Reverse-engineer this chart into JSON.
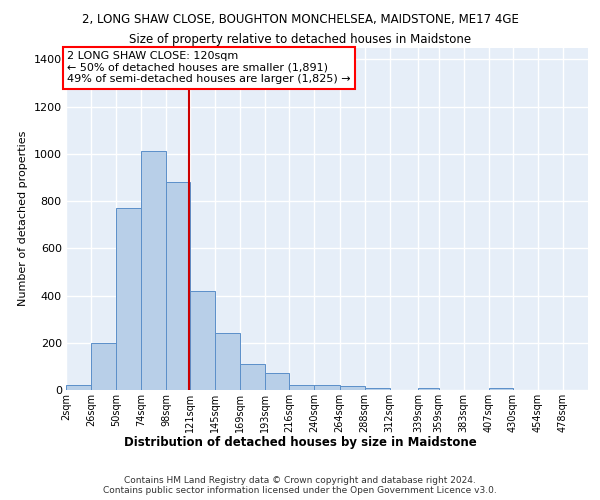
{
  "title": "2, LONG SHAW CLOSE, BOUGHTON MONCHELSEA, MAIDSTONE, ME17 4GE",
  "subtitle": "Size of property relative to detached houses in Maidstone",
  "xlabel": "Distribution of detached houses by size in Maidstone",
  "ylabel": "Number of detached properties",
  "footer_line1": "Contains HM Land Registry data © Crown copyright and database right 2024.",
  "footer_line2": "Contains public sector information licensed under the Open Government Licence v3.0.",
  "bar_color": "#b8cfe8",
  "bar_edge_color": "#5b8fc9",
  "background_color": "#e6eef8",
  "grid_color": "#ffffff",
  "red_line_color": "#cc0000",
  "annotation_line1": "2 LONG SHAW CLOSE: 120sqm",
  "annotation_line2": "← 50% of detached houses are smaller (1,891)",
  "annotation_line3": "49% of semi-detached houses are larger (1,825) →",
  "property_size": 120,
  "categories": [
    "2sqm",
    "26sqm",
    "50sqm",
    "74sqm",
    "98sqm",
    "121sqm",
    "145sqm",
    "169sqm",
    "193sqm",
    "216sqm",
    "240sqm",
    "264sqm",
    "288sqm",
    "312sqm",
    "339sqm",
    "359sqm",
    "383sqm",
    "407sqm",
    "430sqm",
    "454sqm",
    "478sqm"
  ],
  "bin_edges": [
    2,
    26,
    50,
    74,
    98,
    121,
    145,
    169,
    193,
    216,
    240,
    264,
    288,
    312,
    339,
    359,
    383,
    407,
    430,
    454,
    478,
    502
  ],
  "values": [
    20,
    200,
    770,
    1010,
    880,
    420,
    240,
    110,
    70,
    20,
    20,
    15,
    10,
    0,
    10,
    0,
    0,
    10,
    0,
    0,
    0
  ],
  "ylim": [
    0,
    1450
  ],
  "yticks": [
    0,
    200,
    400,
    600,
    800,
    1000,
    1200,
    1400
  ],
  "title_fontsize": 8.5,
  "subtitle_fontsize": 8.5,
  "ylabel_fontsize": 8,
  "xlabel_fontsize": 8.5,
  "footer_fontsize": 6.5,
  "annotation_fontsize": 8
}
